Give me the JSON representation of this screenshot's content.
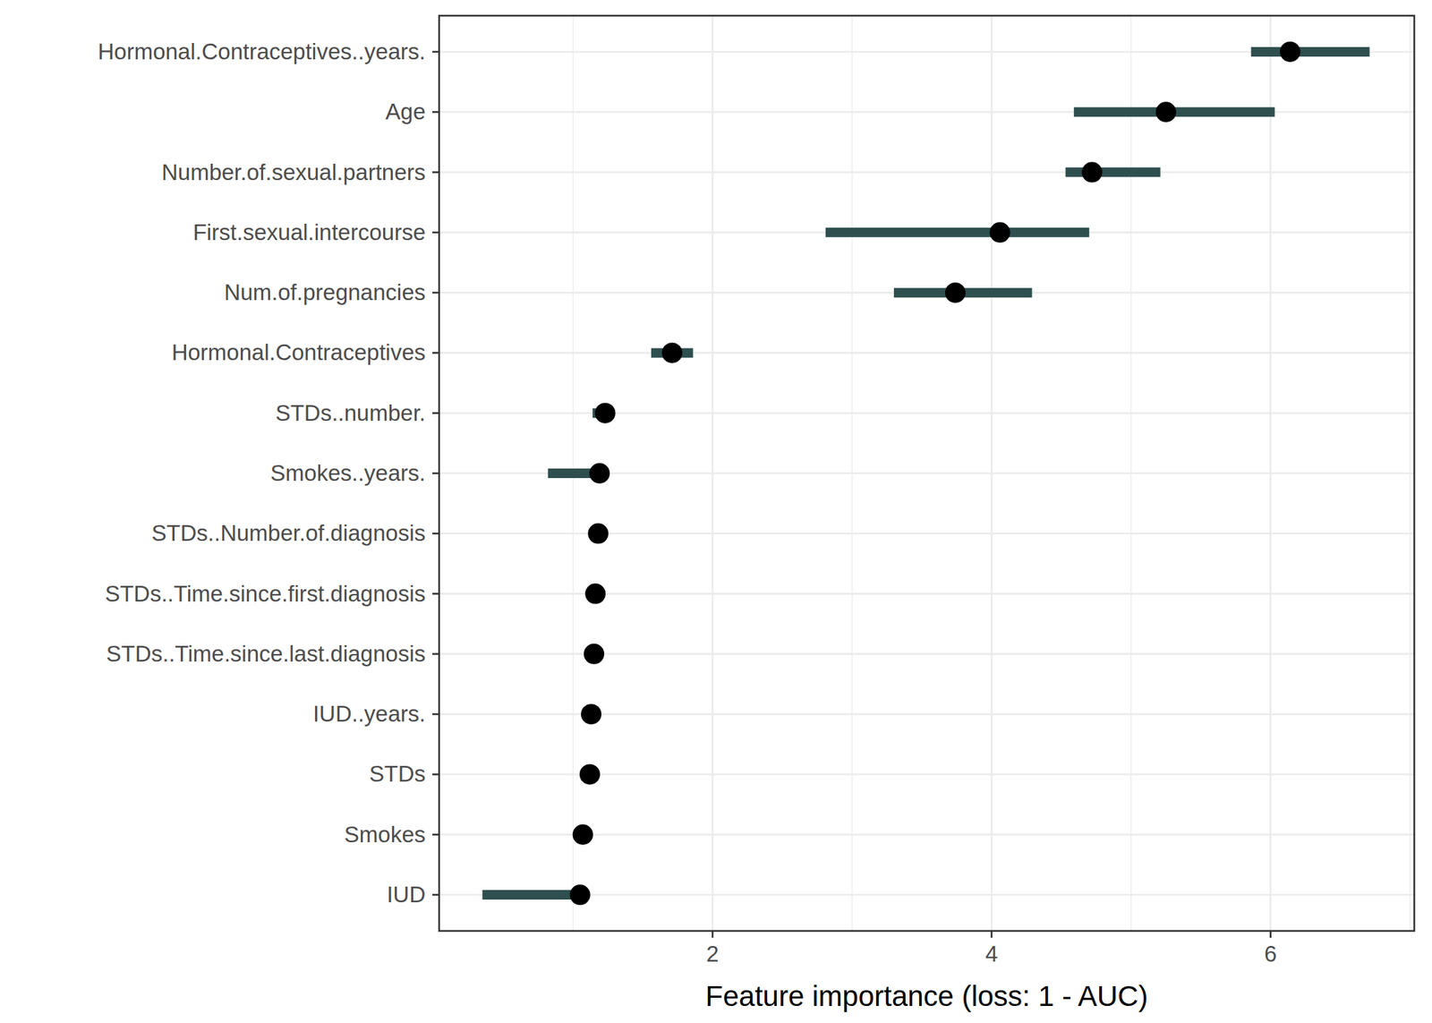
{
  "chart_data": {
    "type": "dot",
    "orientation": "horizontal",
    "grid": true,
    "x_label": "Feature importance (loss: 1 - AUC)",
    "categories": [
      "Hormonal.Contraceptives..years.",
      "Age",
      "Number.of.sexual.partners",
      "First.sexual.intercourse",
      "Num.of.pregnancies",
      "Hormonal.Contraceptives",
      "STDs..number.",
      "Smokes..years.",
      "STDs..Number.of.diagnosis",
      "STDs..Time.since.first.diagnosis",
      "STDs..Time.since.last.diagnosis",
      "IUD..years.",
      "STDs",
      "Smokes",
      "IUD"
    ],
    "values": [
      6.14,
      5.25,
      4.72,
      4.06,
      3.74,
      1.71,
      1.23,
      1.19,
      1.18,
      1.16,
      1.15,
      1.13,
      1.12,
      1.07,
      1.05
    ],
    "lower": [
      5.86,
      4.59,
      4.53,
      2.81,
      3.3,
      1.56,
      1.14,
      0.82,
      1.18,
      1.16,
      1.15,
      1.13,
      1.12,
      1.07,
      0.35
    ],
    "upper": [
      6.71,
      6.03,
      5.21,
      4.7,
      4.29,
      1.86,
      1.23,
      1.19,
      1.18,
      1.16,
      1.15,
      1.13,
      1.12,
      1.07,
      1.05
    ],
    "color": "#2f4f4f",
    "xlim": [
      0.04,
      7.03
    ],
    "xticks": [
      2,
      4,
      6
    ]
  }
}
